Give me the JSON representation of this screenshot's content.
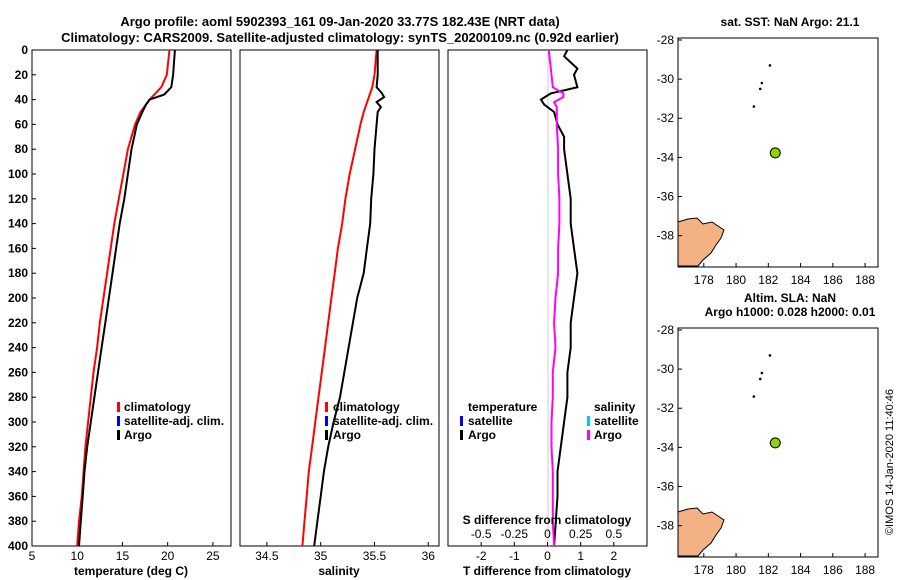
{
  "figure": {
    "title_line1": "Argo profile: aoml 5902393_161 09-Jan-2020 33.77S 182.43E (NRT data)",
    "title_line2": "Climatology: CARS2009. Satellite-adjusted climatology: synTS_20200109.nc (0.92d earlier)",
    "timestamp": "©IMOS 14-Jan-2020 11:40:46",
    "y_ticks": [
      "0",
      "20",
      "40",
      "60",
      "80",
      "100",
      "120",
      "140",
      "160",
      "180",
      "200",
      "220",
      "240",
      "260",
      "280",
      "300",
      "320",
      "340",
      "360",
      "380",
      "400"
    ]
  },
  "colors": {
    "climatology": "#ff0000",
    "satellite": "#0000ff",
    "argo": "#000000",
    "s_diff": "#ff00ff",
    "s_sat": "#00c8ff",
    "land": "#f4b183",
    "float_marker": "#8fd400",
    "zero_line": "#cccccc"
  },
  "chart_data": [
    {
      "type": "line",
      "name": "temperature",
      "xlabel": "temperature (deg C)",
      "xlim": [
        5,
        27
      ],
      "ylim": [
        0,
        400
      ],
      "x_ticks": [
        "5",
        "10",
        "15",
        "20",
        "25"
      ],
      "x_tick_values": [
        5,
        10,
        15,
        20,
        25
      ],
      "legend": [
        "climatology",
        "satellite-adj. clim.",
        "Argo"
      ],
      "series": [
        {
          "name": "climatology",
          "depth": [
            0,
            20,
            30,
            40,
            50,
            60,
            80,
            100,
            120,
            140,
            160,
            180,
            200,
            220,
            240,
            260,
            280,
            300,
            320,
            340,
            360,
            380,
            400
          ],
          "values": [
            20.2,
            19.9,
            19.3,
            18.0,
            17.0,
            16.4,
            15.6,
            15.1,
            14.6,
            14.1,
            13.7,
            13.3,
            12.9,
            12.5,
            12.2,
            11.8,
            11.5,
            11.2,
            10.9,
            10.7,
            10.5,
            10.2,
            10.0
          ]
        },
        {
          "name": "Argo",
          "depth": [
            0,
            20,
            30,
            36,
            40,
            44,
            50,
            60,
            70,
            80,
            100,
            120,
            140,
            160,
            180,
            200,
            220,
            240,
            260,
            280,
            300,
            320,
            340,
            360,
            380,
            400
          ],
          "values": [
            20.8,
            20.6,
            20.4,
            19.6,
            18.0,
            17.6,
            17.2,
            16.6,
            16.3,
            16.0,
            15.6,
            15.2,
            14.7,
            14.3,
            13.9,
            13.5,
            13.1,
            12.7,
            12.3,
            11.9,
            11.5,
            11.1,
            10.8,
            10.6,
            10.4,
            10.2
          ]
        }
      ]
    },
    {
      "type": "line",
      "name": "salinity",
      "xlabel": "salinity",
      "xlim": [
        34.25,
        36.1
      ],
      "ylim": [
        0,
        400
      ],
      "x_ticks": [
        "34.5",
        "35",
        "35.5",
        "36"
      ],
      "x_tick_values": [
        34.5,
        35,
        35.5,
        36
      ],
      "legend": [
        "climatology",
        "satellite-adj. clim.",
        "Argo"
      ],
      "series": [
        {
          "name": "climatology",
          "depth": [
            0,
            20,
            30,
            40,
            50,
            60,
            80,
            100,
            120,
            140,
            160,
            180,
            200,
            220,
            240,
            260,
            280,
            300,
            320,
            340,
            360,
            380,
            400
          ],
          "values": [
            35.52,
            35.5,
            35.48,
            35.44,
            35.4,
            35.37,
            35.32,
            35.27,
            35.23,
            35.2,
            35.16,
            35.13,
            35.1,
            35.07,
            35.04,
            35.01,
            34.98,
            34.95,
            34.92,
            34.89,
            34.87,
            34.85,
            34.83
          ]
        },
        {
          "name": "Argo",
          "depth": [
            0,
            20,
            30,
            35,
            38,
            42,
            46,
            50,
            60,
            80,
            100,
            120,
            140,
            160,
            180,
            200,
            220,
            240,
            260,
            280,
            300,
            320,
            340,
            360,
            380,
            400
          ],
          "values": [
            35.53,
            35.53,
            35.52,
            35.57,
            35.59,
            35.52,
            35.56,
            35.53,
            35.52,
            35.5,
            35.49,
            35.47,
            35.46,
            35.43,
            35.4,
            35.34,
            35.3,
            35.26,
            35.22,
            35.18,
            35.12,
            35.07,
            35.03,
            35.0,
            34.97,
            34.94
          ]
        }
      ]
    },
    {
      "type": "line",
      "name": "difference",
      "xlabel": "T difference from climatology",
      "xlim": [
        -3,
        3
      ],
      "ylim": [
        0,
        400
      ],
      "x_ticks": [
        "-2",
        "-1",
        "0",
        "1",
        "2"
      ],
      "x_tick_values": [
        -2,
        -1,
        0,
        1,
        2
      ],
      "x2label": "S difference from climatology",
      "x2_ticks": [
        "-0.5",
        "-0.25",
        "0",
        "0.25",
        "0.5"
      ],
      "x2_tick_values": [
        -0.5,
        -0.25,
        0,
        0.25,
        0.5
      ],
      "legend_t": {
        "title": "temperature",
        "items": [
          "satellite",
          "Argo"
        ]
      },
      "legend_s": {
        "title": "salinity",
        "items": [
          "satellite",
          "Argo"
        ]
      },
      "series": [
        {
          "name": "T Argo",
          "depth": [
            0,
            5,
            10,
            15,
            20,
            30,
            35,
            40,
            44,
            50,
            60,
            70,
            80,
            100,
            120,
            140,
            160,
            180,
            200,
            220,
            240,
            260,
            280,
            300,
            320,
            340,
            360,
            380,
            400
          ],
          "values": [
            0.6,
            0.5,
            0.7,
            0.9,
            0.8,
            0.9,
            0.1,
            -0.2,
            -0.1,
            0.2,
            0.3,
            0.5,
            0.5,
            0.6,
            0.7,
            0.7,
            0.8,
            0.9,
            0.8,
            0.7,
            0.7,
            0.6,
            0.6,
            0.5,
            0.4,
            0.3,
            0.3,
            0.25,
            0.2
          ]
        },
        {
          "name": "S Argo",
          "depth": [
            0,
            20,
            30,
            35,
            38,
            42,
            46,
            50,
            60,
            80,
            100,
            120,
            140,
            160,
            180,
            200,
            220,
            240,
            260,
            280,
            300,
            320,
            340,
            360,
            380,
            400
          ],
          "values": [
            0.01,
            0.03,
            0.04,
            0.12,
            0.12,
            0.05,
            0.07,
            0.07,
            0.07,
            0.08,
            0.08,
            0.09,
            0.09,
            0.08,
            0.08,
            0.06,
            0.05,
            0.06,
            0.04,
            0.04,
            0.03,
            0.03,
            0.04,
            0.04,
            0.04,
            0.05
          ]
        }
      ]
    },
    {
      "type": "scatter",
      "name": "map_sst",
      "title": "sat. SST: NaN Argo: 21.1",
      "xlim": [
        176.4,
        188.8
      ],
      "ylim": [
        -39.6,
        -27.9
      ],
      "x_ticks": [
        "178",
        "180",
        "182",
        "184",
        "186",
        "188"
      ],
      "x_tick_values": [
        178,
        180,
        182,
        184,
        186,
        188
      ],
      "y_ticks": [
        "-28",
        "-30",
        "-32",
        "-34",
        "-36",
        "-38"
      ],
      "y_tick_values": [
        -28,
        -30,
        -32,
        -34,
        -36,
        -38
      ],
      "float": {
        "lon": 182.43,
        "lat": -33.77
      },
      "islands": [
        {
          "lon": 182.1,
          "lat": -29.3
        },
        {
          "lon": 181.6,
          "lat": -30.2
        },
        {
          "lon": 181.5,
          "lat": -30.5
        },
        {
          "lon": 181.1,
          "lat": -31.4
        }
      ]
    },
    {
      "type": "scatter",
      "name": "map_sla",
      "title": "Altim. SLA: NaN",
      "title2": "Argo h1000: 0.028 h2000: 0.01",
      "xlim": [
        176.4,
        188.8
      ],
      "ylim": [
        -39.6,
        -27.9
      ],
      "x_ticks": [
        "178",
        "180",
        "182",
        "184",
        "186",
        "188"
      ],
      "x_tick_values": [
        178,
        180,
        182,
        184,
        186,
        188
      ],
      "y_ticks": [
        "-28",
        "-30",
        "-32",
        "-34",
        "-36",
        "-38"
      ],
      "y_tick_values": [
        -28,
        -30,
        -32,
        -34,
        -36,
        -38
      ],
      "float": {
        "lon": 182.43,
        "lat": -33.77
      },
      "islands": [
        {
          "lon": 182.1,
          "lat": -29.3
        },
        {
          "lon": 181.6,
          "lat": -30.2
        },
        {
          "lon": 181.5,
          "lat": -30.5
        },
        {
          "lon": 181.1,
          "lat": -31.4
        }
      ]
    }
  ]
}
